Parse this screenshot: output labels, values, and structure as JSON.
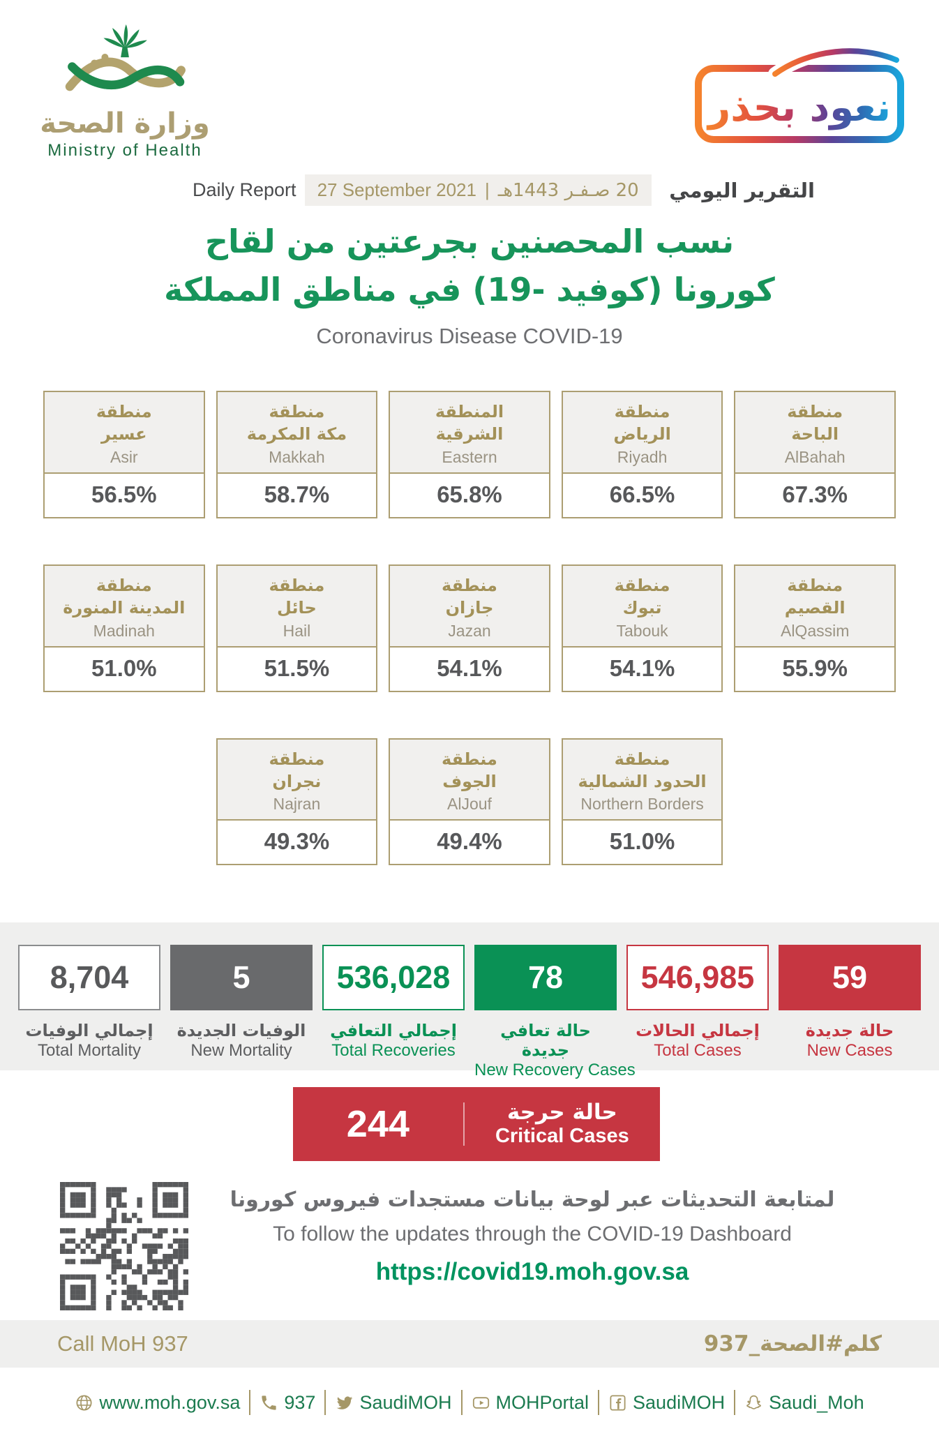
{
  "colors": {
    "brand_green": "#17945a",
    "gold": "#a59767",
    "red": "#c63641",
    "dark_gray": "#58595b",
    "recovery_green": "#0a9155",
    "band_gray": "#efefee"
  },
  "header": {
    "moh_logo": {
      "arabic": "وزارة الصحة",
      "english": "Ministry of Health"
    },
    "campaign_logo": {
      "arabic": "نعود بحذر"
    },
    "report": {
      "english_label": "Daily Report",
      "date_gregorian": "27 September 2021",
      "date_separator": "|",
      "date_hijri": "20 صـفـر 1443هـ",
      "arabic_label": "التقرير اليومي"
    }
  },
  "title": {
    "arabic_line1": "نسب المحصنين بجرعتين من لقاح",
    "arabic_line2": "كورونا (كوفيد -19) في مناطق المملكة",
    "english": "Coronavirus Disease COVID-19"
  },
  "regions": {
    "rows": [
      {
        "cards": [
          {
            "key": "asir",
            "prefix_ar": "منطقة",
            "name_ar": "عسير",
            "name_en": "Asir",
            "value": "56.5%"
          },
          {
            "key": "makkah",
            "prefix_ar": "منطقة",
            "name_ar": "مكة المكرمة",
            "name_en": "Makkah",
            "value": "58.7%"
          },
          {
            "key": "eastern",
            "prefix_ar": "المنطقة",
            "name_ar": "الشرقية",
            "name_en": "Eastern",
            "value": "65.8%"
          },
          {
            "key": "riyadh",
            "prefix_ar": "منطقة",
            "name_ar": "الرياض",
            "name_en": "Riyadh",
            "value": "66.5%"
          },
          {
            "key": "albahah",
            "prefix_ar": "منطقة",
            "name_ar": "الباحة",
            "name_en": "AlBahah",
            "value": "67.3%"
          }
        ]
      },
      {
        "cards": [
          {
            "key": "madinah",
            "prefix_ar": "منطقة",
            "name_ar": "المدينة المنورة",
            "name_en": "Madinah",
            "value": "51.0%"
          },
          {
            "key": "hail",
            "prefix_ar": "منطقة",
            "name_ar": "حائل",
            "name_en": "Hail",
            "value": "51.5%"
          },
          {
            "key": "jazan",
            "prefix_ar": "منطقة",
            "name_ar": "جازان",
            "name_en": "Jazan",
            "value": "54.1%"
          },
          {
            "key": "tabouk",
            "prefix_ar": "منطقة",
            "name_ar": "تبوك",
            "name_en": "Tabouk",
            "value": "54.1%"
          },
          {
            "key": "alqassim",
            "prefix_ar": "منطقة",
            "name_ar": "القصيم",
            "name_en": "AlQassim",
            "value": "55.9%"
          }
        ]
      },
      {
        "cards": [
          {
            "key": "najran",
            "prefix_ar": "منطقة",
            "name_ar": "نجران",
            "name_en": "Najran",
            "value": "49.3%"
          },
          {
            "key": "aljouf",
            "prefix_ar": "منطقة",
            "name_ar": "الجوف",
            "name_en": "AlJouf",
            "value": "49.4%"
          },
          {
            "key": "northern-borders",
            "prefix_ar": "منطقة",
            "name_ar": "الحدود الشمالية",
            "name_en": "Northern Borders",
            "value": "51.0%"
          }
        ]
      }
    ]
  },
  "stats": {
    "items": [
      {
        "key": "total-mortality",
        "value": "8,704",
        "label_ar": "إجمالي الوفيات",
        "label_en": "Total Mortality",
        "style": "outline-gray",
        "tone": "gray"
      },
      {
        "key": "new-mortality",
        "value": "5",
        "label_ar": "الوفيات الجديدة",
        "label_en": "New Mortality",
        "style": "solid-dark",
        "tone": "gray"
      },
      {
        "key": "total-recoveries",
        "value": "536,028",
        "label_ar": "إجمالي التعافي",
        "label_en": "Total Recoveries",
        "style": "outline-green",
        "tone": "green"
      },
      {
        "key": "new-recovery-cases",
        "value": "78",
        "label_ar": "حالة تعافي جديدة",
        "label_en": "New Recovery Cases",
        "style": "solid-green",
        "tone": "green"
      },
      {
        "key": "total-cases",
        "value": "546,985",
        "label_ar": "إجمالي الحالات",
        "label_en": "Total Cases",
        "style": "outline-red",
        "tone": "red"
      },
      {
        "key": "new-cases",
        "value": "59",
        "label_ar": "حالة جديدة",
        "label_en": "New Cases",
        "style": "solid-red",
        "tone": "red"
      }
    ]
  },
  "critical": {
    "value": "244",
    "label_ar": "حالة حرجة",
    "label_en": "Critical Cases"
  },
  "dashboard": {
    "arabic": "لمتابعة التحديثات عبر لوحة بيانات مستجدات فيروس كورونا",
    "english": "To follow the updates through the COVID-19 Dashboard",
    "url": "https://covid19.moh.gov.sa"
  },
  "call": {
    "english": "Call MoH 937",
    "arabic": "كلم#الصحة_937"
  },
  "footer": {
    "items": [
      {
        "icon": "globe-icon",
        "label": "www.moh.gov.sa"
      },
      {
        "icon": "phone-icon",
        "label": "937"
      },
      {
        "icon": "twitter-icon",
        "label": "SaudiMOH"
      },
      {
        "icon": "youtube-icon",
        "label": "MOHPortal"
      },
      {
        "icon": "facebook-icon",
        "label": "SaudiMOH"
      },
      {
        "icon": "snapchat-icon",
        "label": "Saudi_Moh"
      }
    ]
  }
}
